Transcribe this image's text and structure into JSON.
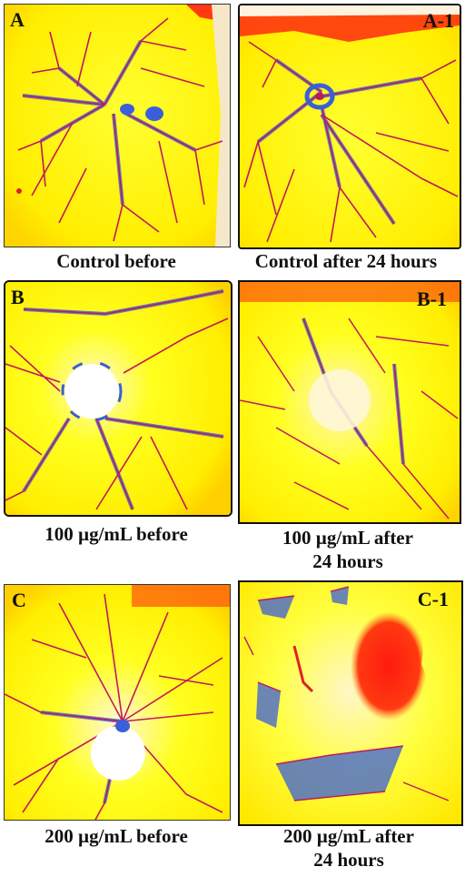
{
  "panels": [
    {
      "id": "A",
      "letter": "A",
      "caption": "Control  before"
    },
    {
      "id": "A1",
      "letter": "A-1",
      "caption": "Control  after 24 hours"
    },
    {
      "id": "B",
      "letter": "B",
      "caption": "100 µg/mL before"
    },
    {
      "id": "B1",
      "letter": "B-1",
      "caption_line1": "100 µg/mL after",
      "caption_line2": "24 hours"
    },
    {
      "id": "C",
      "letter": "C",
      "caption": "200 µg/mL before"
    },
    {
      "id": "C1",
      "letter": "C-1",
      "caption_line1": "200 µg/mL after",
      "caption_line2": "24 hours"
    }
  ],
  "colors": {
    "background": "#ffff00",
    "vessel": "#c2185b",
    "vessel_halo": "#3a5fd8",
    "hemorrhage": "#ff2a10",
    "disc": "#fffbe8"
  }
}
